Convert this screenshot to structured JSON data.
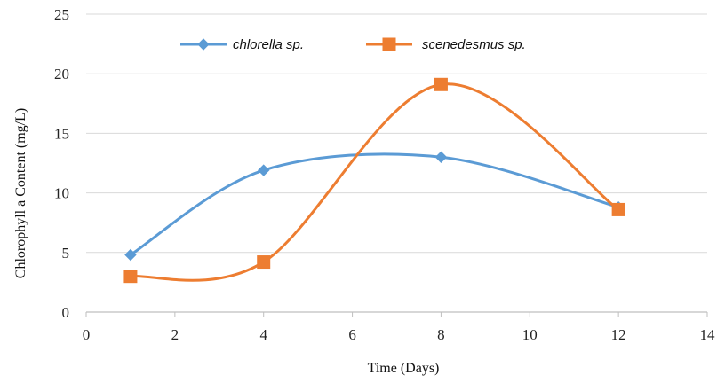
{
  "chart_data": {
    "type": "line",
    "title": "",
    "xlabel": "Time (Days)",
    "ylabel": "Chlorophyll a Content (mg/L)",
    "xlim": [
      0,
      14
    ],
    "ylim": [
      0,
      25
    ],
    "xticks": [
      0,
      2,
      4,
      6,
      8,
      10,
      12,
      14
    ],
    "yticks": [
      0,
      5,
      10,
      15,
      20,
      25
    ],
    "grid": "horizontal",
    "legend_position": "top",
    "smooth": true,
    "series": [
      {
        "name": "chlorella sp.",
        "color": "#5b9bd5",
        "marker": "diamond",
        "x": [
          1,
          4,
          8,
          12
        ],
        "y": [
          4.8,
          11.9,
          13.0,
          8.8
        ]
      },
      {
        "name": "scenedesmus sp.",
        "color": "#ed7d31",
        "marker": "square",
        "x": [
          1,
          4,
          8,
          12
        ],
        "y": [
          3.0,
          4.2,
          19.1,
          8.6
        ]
      }
    ]
  }
}
